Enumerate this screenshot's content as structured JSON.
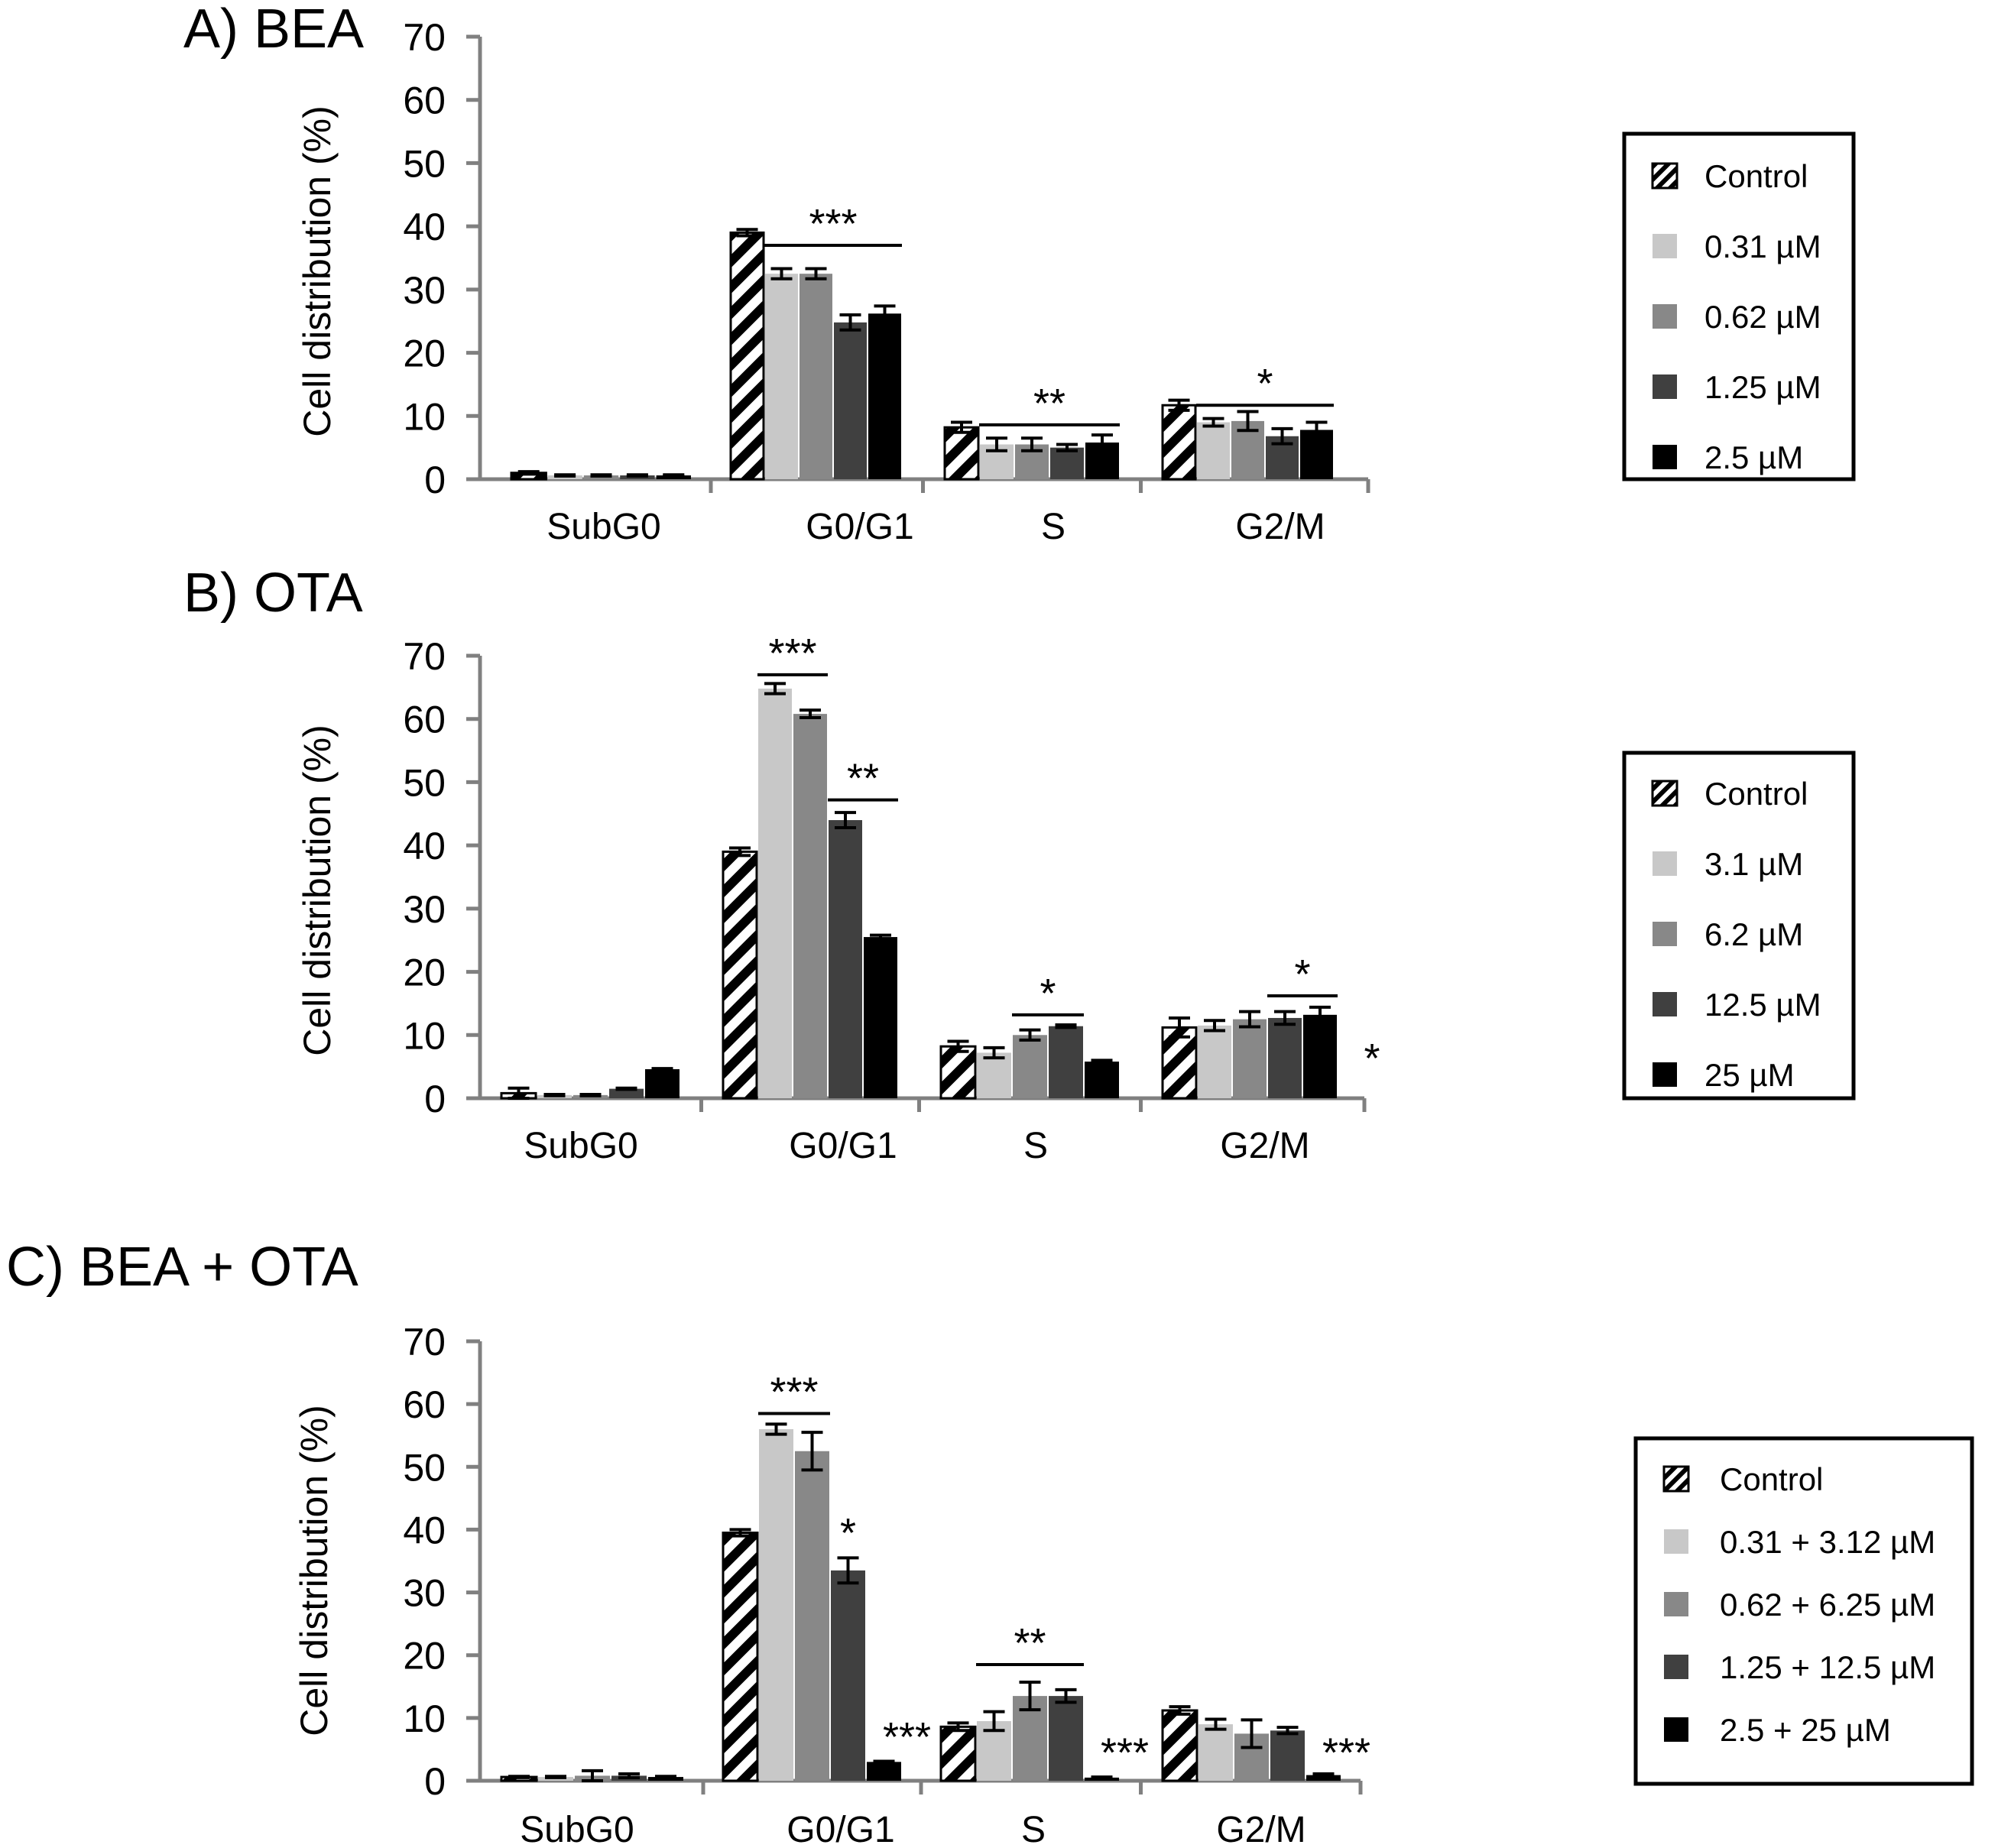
{
  "colors": {
    "control_hatch": "#000000",
    "series": [
      "#000000",
      "#c8c8c8",
      "#888888",
      "#404040",
      "#000000"
    ]
  },
  "chart_data": [
    {
      "type": "bar",
      "title": "A) BEA",
      "ylabel": "Cell distribution (%)",
      "ylim": [
        0,
        70
      ],
      "yticks": [
        "0",
        "10",
        "20",
        "30",
        "40",
        "50",
        "60",
        "70"
      ],
      "categories": [
        "SubG0",
        "G0/G1",
        "S",
        "G2/M"
      ],
      "series": [
        {
          "name": "Control",
          "pattern": "hatch",
          "values": [
            1.0,
            39.0,
            8.2,
            11.7
          ],
          "errors": [
            0.2,
            0.5,
            0.8,
            0.8
          ]
        },
        {
          "name": "0.31 µM",
          "values": [
            0.6,
            32.5,
            5.5,
            9.0
          ],
          "errors": [
            0.1,
            0.8,
            1.0,
            0.6
          ]
        },
        {
          "name": "0.62 µM",
          "values": [
            0.6,
            32.5,
            5.5,
            9.2
          ],
          "errors": [
            0.1,
            0.8,
            1.0,
            1.5
          ]
        },
        {
          "name": "1.25 µM",
          "values": [
            0.6,
            24.8,
            5.0,
            6.8
          ],
          "errors": [
            0.1,
            1.2,
            0.5,
            1.2
          ]
        },
        {
          "name": "2.5  µM",
          "values": [
            0.6,
            26.2,
            5.8,
            7.8
          ],
          "errors": [
            0.1,
            1.2,
            1.2,
            1.2
          ]
        }
      ],
      "annotations": [
        {
          "text": "***",
          "category": "G0/G1",
          "from": 1,
          "to": 4,
          "y": 37.0
        },
        {
          "text": "**",
          "category": "S",
          "from": 1,
          "to": 4,
          "y": 8.6
        },
        {
          "text": "*",
          "category": "G2/M",
          "from": 1,
          "to": 4,
          "y": 11.7
        }
      ]
    },
    {
      "type": "bar",
      "title": "B) OTA",
      "ylabel": "Cell distribution (%)",
      "ylim": [
        0,
        70
      ],
      "yticks": [
        "0",
        "10",
        "20",
        "30",
        "40",
        "50",
        "60",
        "70"
      ],
      "categories": [
        "SubG0",
        "G0/G1",
        "S",
        "G2/M"
      ],
      "series": [
        {
          "name": "Control",
          "pattern": "hatch",
          "values": [
            0.8,
            39.0,
            8.2,
            11.2
          ],
          "errors": [
            0.8,
            0.6,
            0.8,
            1.5
          ]
        },
        {
          "name": "3.1 µM",
          "values": [
            0.5,
            64.8,
            7.2,
            11.5
          ],
          "errors": [
            0.1,
            0.8,
            0.8,
            0.8
          ]
        },
        {
          "name": "6.2 µM",
          "values": [
            0.5,
            60.8,
            10.0,
            12.5
          ],
          "errors": [
            0.1,
            0.6,
            0.8,
            1.2
          ]
        },
        {
          "name": "12.5 µM",
          "values": [
            1.5,
            44.0,
            11.4,
            12.7
          ],
          "errors": [
            0.1,
            1.2,
            0.2,
            1.0
          ]
        },
        {
          "name": "25  µM",
          "values": [
            4.6,
            25.5,
            5.8,
            13.2
          ],
          "errors": [
            0.1,
            0.3,
            0.2,
            1.2
          ]
        }
      ],
      "annotations": [
        {
          "text": "***",
          "category": "G0/G1",
          "from": 1,
          "to": 2,
          "y": 67.0
        },
        {
          "text": "**",
          "category": "G0/G1",
          "from": 3,
          "to": 4,
          "y": 47.2
        },
        {
          "text": "*",
          "category": "S",
          "from": 2,
          "to": 3,
          "y": 13.2
        },
        {
          "text": "*",
          "category": "G2/M",
          "from": 3,
          "to": 4,
          "y": 16.2
        },
        {
          "text": "*",
          "category": "G2/M",
          "side": true,
          "y": 8.0
        }
      ]
    },
    {
      "type": "bar",
      "title": "C) BEA + OTA",
      "ylabel": "Cell distribution (%)",
      "ylim": [
        0,
        70
      ],
      "yticks": [
        "0",
        "10",
        "20",
        "30",
        "40",
        "50",
        "60",
        "70"
      ],
      "categories": [
        "SubG0",
        "G0/G1",
        "S",
        "G2/M"
      ],
      "series": [
        {
          "name": "Control",
          "pattern": "hatch",
          "values": [
            0.6,
            39.5,
            8.6,
            11.2
          ],
          "errors": [
            0.1,
            0.5,
            0.6,
            0.6
          ]
        },
        {
          "name": "0.31 + 3.12 µM",
          "values": [
            0.6,
            56.0,
            9.5,
            9.0
          ],
          "errors": [
            0.1,
            0.8,
            1.5,
            0.8
          ]
        },
        {
          "name": "0.62 + 6.25 µM",
          "values": [
            0.8,
            52.5,
            13.5,
            7.5
          ],
          "errors": [
            0.8,
            3.0,
            2.2,
            2.2
          ]
        },
        {
          "name": "1.25 + 12.5 µM",
          "values": [
            0.8,
            33.5,
            13.5,
            8.0
          ],
          "errors": [
            0.3,
            2.0,
            1.0,
            0.5
          ]
        },
        {
          "name": "2.5 + 25  µM",
          "values": [
            0.6,
            3.0,
            0.5,
            0.9
          ],
          "errors": [
            0.1,
            0.1,
            0.1,
            0.2
          ]
        }
      ],
      "annotations": [
        {
          "text": "***",
          "category": "G0/G1",
          "from": 1,
          "to": 2,
          "y": 58.5
        },
        {
          "text": "*",
          "category": "G0/G1",
          "from": 3,
          "to": 3,
          "y": 36.5,
          "noline": true
        },
        {
          "text": "***",
          "category": "G0/G1",
          "from": 4,
          "to": 4,
          "y": 4.0,
          "noline": true,
          "offset": 1
        },
        {
          "text": "**",
          "category": "S",
          "from": 1,
          "to": 3,
          "y": 18.5
        },
        {
          "text": "***",
          "category": "S",
          "from": 4,
          "to": 4,
          "y": 1.5,
          "noline": true,
          "offset": 1
        },
        {
          "text": "***",
          "category": "G2/M",
          "from": 4,
          "to": 4,
          "y": 1.5,
          "noline": true,
          "offset": 1
        }
      ]
    }
  ]
}
